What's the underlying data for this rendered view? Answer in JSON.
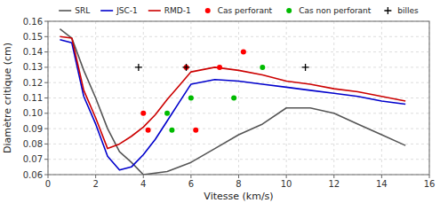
{
  "chart_data": {
    "type": "line",
    "xlabel": "Vitesse (km/s)",
    "ylabel": "Diamètre critique (cm)",
    "xlim": [
      0,
      16
    ],
    "ylim": [
      0.06,
      0.16
    ],
    "xticks": [
      0,
      2,
      4,
      6,
      8,
      10,
      12,
      14,
      16
    ],
    "yticks": [
      0.06,
      0.07,
      0.08,
      0.09,
      {
        "value": 0.1,
        "label": "0.10"
      },
      0.11,
      0.12,
      0.13,
      0.14,
      0.15,
      0.16
    ],
    "grid": true,
    "legend": "top",
    "series": [
      {
        "name": "SRL",
        "type": "line",
        "color": "#555555",
        "x": [
          0.5,
          1.0,
          1.5,
          2.0,
          2.5,
          3.0,
          3.5,
          4.0,
          5.0,
          6.0,
          7.0,
          8.0,
          9.0,
          10.0,
          11.0,
          12.0,
          13.0,
          14.0,
          15.0
        ],
        "values": [
          0.155,
          0.149,
          0.128,
          0.11,
          0.09,
          0.075,
          0.068,
          0.06,
          0.062,
          0.068,
          0.077,
          0.086,
          0.093,
          0.1035,
          0.1035,
          0.1,
          0.093,
          0.086,
          0.079
        ]
      },
      {
        "name": "JSC-1",
        "type": "line",
        "color": "#0000cc",
        "x": [
          0.5,
          1.0,
          1.5,
          2.0,
          2.5,
          3.0,
          3.5,
          4.0,
          4.5,
          5.0,
          5.5,
          6.0,
          7.0,
          8.0,
          9.0,
          10.0,
          11.0,
          12.0,
          13.0,
          14.0,
          15.0
        ],
        "values": [
          0.148,
          0.146,
          0.111,
          0.093,
          0.072,
          0.063,
          0.065,
          0.073,
          0.083,
          0.095,
          0.107,
          0.119,
          0.122,
          0.121,
          0.119,
          0.117,
          0.115,
          0.113,
          0.111,
          0.108,
          0.106
        ]
      },
      {
        "name": "RMD-1",
        "type": "line",
        "color": "#cc0000",
        "x": [
          0.5,
          1.0,
          1.5,
          2.0,
          2.5,
          3.0,
          3.5,
          4.0,
          4.5,
          5.0,
          5.5,
          6.0,
          7.0,
          8.0,
          9.0,
          10.0,
          11.0,
          12.0,
          13.0,
          14.0,
          15.0
        ],
        "values": [
          0.15,
          0.149,
          0.115,
          0.097,
          0.077,
          0.08,
          0.085,
          0.091,
          0.099,
          0.109,
          0.118,
          0.127,
          0.13,
          0.128,
          0.125,
          0.121,
          0.119,
          0.116,
          0.114,
          0.111,
          0.108
        ]
      },
      {
        "name": "Cas perforant",
        "type": "scatter",
        "marker": "circle",
        "color": "#ff0000",
        "x": [
          4.0,
          4.2,
          5.8,
          6.2,
          7.2,
          8.2
        ],
        "values": [
          0.1,
          0.089,
          0.13,
          0.089,
          0.13,
          0.14
        ]
      },
      {
        "name": "Cas non perforant",
        "type": "scatter",
        "marker": "circle",
        "color": "#00bb00",
        "x": [
          5.0,
          5.2,
          6.0,
          7.8,
          9.0
        ],
        "values": [
          0.1,
          0.089,
          0.11,
          0.11,
          0.13
        ]
      },
      {
        "name": "billes",
        "type": "scatter",
        "marker": "plus",
        "color": "#000000",
        "x": [
          3.8,
          5.8,
          10.8
        ],
        "values": [
          0.13,
          0.13,
          0.13
        ]
      }
    ]
  }
}
